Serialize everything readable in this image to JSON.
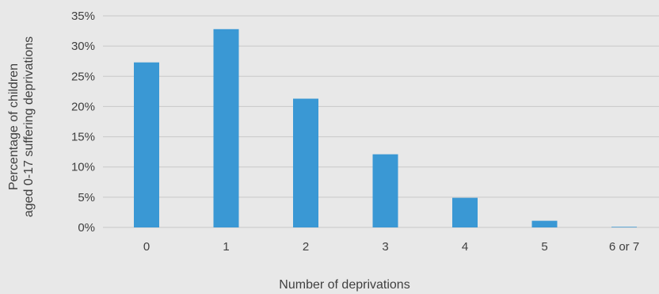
{
  "chart_data": {
    "type": "bar",
    "categories": [
      "0",
      "1",
      "2",
      "3",
      "4",
      "5",
      "6 or 7"
    ],
    "values": [
      27.3,
      32.8,
      21.3,
      12.1,
      4.9,
      1.1,
      0.1
    ],
    "xlabel": "Number of deprivations",
    "ylabel_lines": [
      "Percentage of children",
      "aged 0-17 suffering deprivations"
    ],
    "ylim": [
      0,
      35
    ],
    "yticks": [
      "0%",
      "5%",
      "10%",
      "15%",
      "20%",
      "25%",
      "30%",
      "35%"
    ],
    "grid": true,
    "legend": "none",
    "bar_color": "#3a98d4",
    "background_color": "#e8e8e8"
  }
}
